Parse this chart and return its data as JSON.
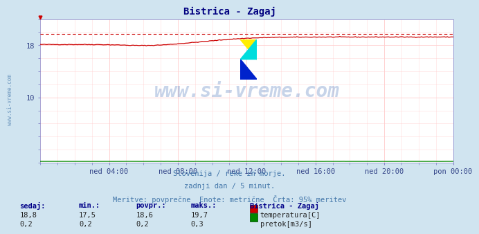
{
  "title": "Bistrica - Zagaj",
  "title_color": "#000080",
  "background_color": "#d0e4f0",
  "plot_bg_color": "#ffffff",
  "grid_color": "#ffcccc",
  "xlim": [
    0,
    288
  ],
  "ylim": [
    0,
    22
  ],
  "yticks": [
    10,
    18
  ],
  "xtick_labels": [
    "ned 04:00",
    "ned 08:00",
    "ned 12:00",
    "ned 16:00",
    "ned 20:00",
    "pon 00:00"
  ],
  "xtick_positions": [
    48,
    96,
    144,
    192,
    240,
    288
  ],
  "temp_color": "#cc0000",
  "flow_color": "#008800",
  "temp_max_val": 19.7,
  "watermark_text": "www.si-vreme.com",
  "watermark_color": "#2255aa",
  "watermark_alpha": 0.25,
  "subtitle1": "Slovenija / reke in morje.",
  "subtitle2": "zadnji dan / 5 minut.",
  "subtitle3": "Meritve: povprečne  Enote: metrične  Črta: 95% meritev",
  "subtitle_color": "#4477aa",
  "table_header": [
    "sedaj:",
    "min.:",
    "povpr.:",
    "maks.:",
    "Bistrica - Zagaj"
  ],
  "table_row1": [
    "18,8",
    "17,5",
    "18,6",
    "19,7"
  ],
  "table_row2": [
    "0,2",
    "0,2",
    "0,2",
    "0,3"
  ],
  "label_temp": "temperatura[C]",
  "label_flow": "pretok[m3/s]",
  "left_label": "www.si-vreme.com",
  "left_label_color": "#4477aa"
}
